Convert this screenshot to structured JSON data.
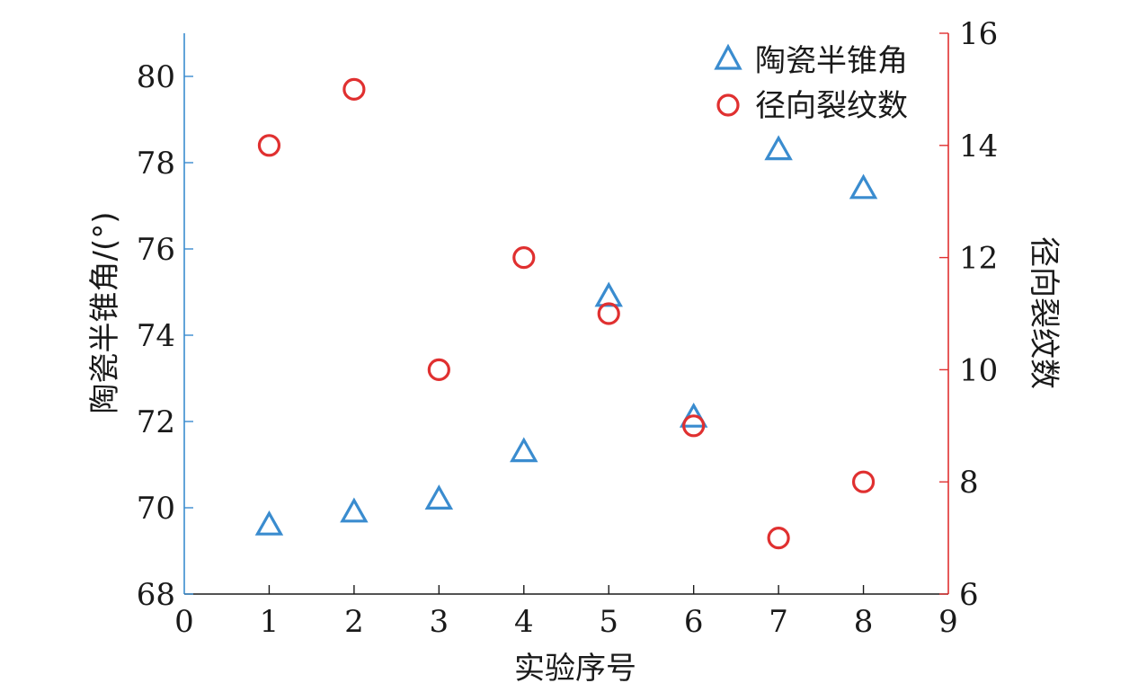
{
  "chart_data": {
    "type": "scatter",
    "xlabel": "实验序号",
    "ylabel_left": "陶瓷半锥角/(°)",
    "ylabel_right": "径向裂纹数",
    "xlim": [
      0,
      9
    ],
    "ylim_left": [
      68,
      81
    ],
    "ylim_right": [
      6,
      16
    ],
    "x_ticks": [
      "0",
      "1",
      "2",
      "3",
      "4",
      "5",
      "6",
      "7",
      "8",
      "9"
    ],
    "y_left_ticks": [
      "68",
      "70",
      "72",
      "74",
      "76",
      "78",
      "80"
    ],
    "y_right_ticks": [
      "6",
      "8",
      "10",
      "12",
      "14",
      "16"
    ],
    "grid": false,
    "legend_position": "top-right",
    "colors": {
      "left_axis": "#3a8ccf",
      "right_axis": "#e03030",
      "frame": "#1a1a1a"
    },
    "series": [
      {
        "name": "陶瓷半锥角",
        "axis": "left",
        "marker": "triangle",
        "color": "#3a8ccf",
        "x": [
          1,
          2,
          3,
          4,
          5,
          6,
          7,
          8
        ],
        "y": [
          69.6,
          69.9,
          70.2,
          71.3,
          74.9,
          72.1,
          78.3,
          77.4
        ]
      },
      {
        "name": "径向裂纹数",
        "axis": "right",
        "marker": "circle",
        "color": "#e03030",
        "x": [
          1,
          2,
          3,
          4,
          5,
          6,
          7,
          8
        ],
        "y": [
          14,
          15,
          10,
          12,
          11,
          9,
          7,
          8
        ]
      }
    ]
  }
}
